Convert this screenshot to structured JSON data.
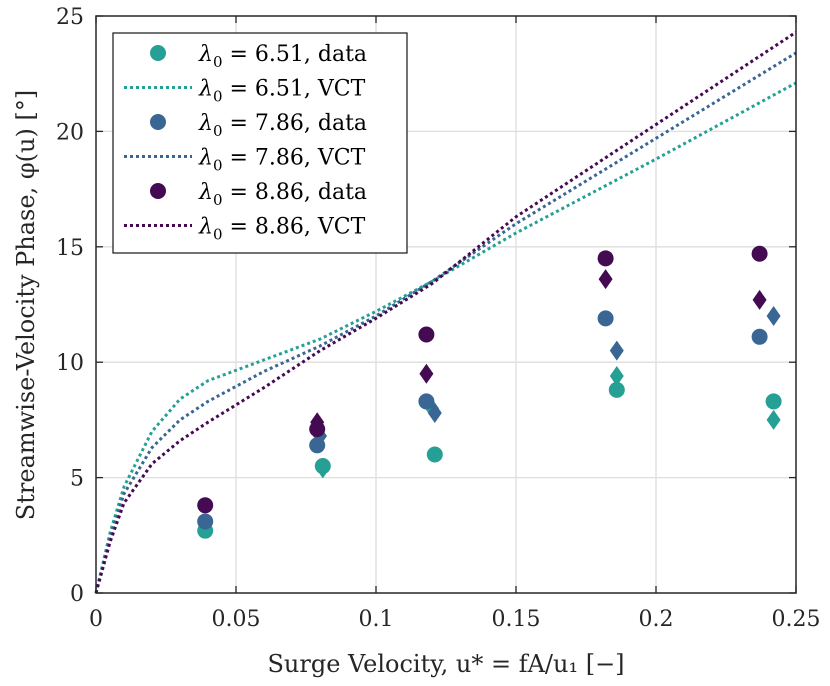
{
  "chart_data": {
    "type": "scatter",
    "xlabel": "Surge Velocity, u* = fA/u₁ [−]",
    "ylabel": "Streamwise-Velocity Phase, φ(u) [°]",
    "xlim": [
      0,
      0.25
    ],
    "ylim": [
      0,
      25
    ],
    "xticks": [
      "0",
      "0.05",
      "0.1",
      "0.15",
      "0.2",
      "0.25"
    ],
    "xtick_values": [
      0,
      0.05,
      0.1,
      0.15,
      0.2,
      0.25
    ],
    "yticks": [
      "0",
      "5",
      "10",
      "15",
      "20",
      "25"
    ],
    "ytick_values": [
      0,
      5,
      10,
      15,
      20,
      25
    ],
    "grid": true,
    "legend_position": "top-left",
    "series": [
      {
        "name": "λ₀ = 6.51, data",
        "color": "#26a094",
        "circles": [
          [
            0.039,
            2.7
          ],
          [
            0.081,
            5.5
          ],
          [
            0.121,
            6.0
          ],
          [
            0.186,
            8.8
          ],
          [
            0.242,
            8.3
          ]
        ],
        "diamonds": [
          [
            0.081,
            5.4
          ],
          [
            0.12,
            8.0
          ],
          [
            0.186,
            9.4
          ],
          [
            0.242,
            7.5
          ]
        ]
      },
      {
        "name": "λ₀ = 6.51, VCT",
        "color": "#26a094",
        "style": "dotted",
        "x": [
          0,
          0.005,
          0.01,
          0.02,
          0.03,
          0.04,
          0.06,
          0.08,
          0.1,
          0.12,
          0.15,
          0.2,
          0.25
        ],
        "y": [
          0,
          2.6,
          4.6,
          7.0,
          8.4,
          9.2,
          10.1,
          11.0,
          12.2,
          13.5,
          15.6,
          18.8,
          22.1
        ]
      },
      {
        "name": "λ₀ = 7.86, data",
        "color": "#3a6694",
        "circles": [
          [
            0.039,
            3.1
          ],
          [
            0.079,
            6.4
          ],
          [
            0.118,
            8.3
          ],
          [
            0.182,
            11.9
          ],
          [
            0.237,
            11.1
          ]
        ],
        "diamonds": [
          [
            0.08,
            6.8
          ],
          [
            0.121,
            7.8
          ],
          [
            0.186,
            10.5
          ],
          [
            0.242,
            12.0
          ]
        ]
      },
      {
        "name": "λ₀ = 7.86, VCT",
        "color": "#3a6694",
        "style": "dotted",
        "x": [
          0,
          0.005,
          0.01,
          0.02,
          0.03,
          0.04,
          0.06,
          0.08,
          0.1,
          0.12,
          0.15,
          0.2,
          0.25
        ],
        "y": [
          0,
          2.4,
          4.3,
          6.3,
          7.5,
          8.3,
          9.6,
          10.7,
          12.0,
          13.5,
          16.0,
          19.7,
          23.4
        ]
      },
      {
        "name": "λ₀ = 8.86, data",
        "color": "#440a52",
        "circles": [
          [
            0.039,
            3.8
          ],
          [
            0.079,
            7.1
          ],
          [
            0.118,
            11.2
          ],
          [
            0.182,
            14.5
          ],
          [
            0.237,
            14.7
          ]
        ],
        "diamonds": [
          [
            0.079,
            7.4
          ],
          [
            0.118,
            9.5
          ],
          [
            0.182,
            13.6
          ],
          [
            0.237,
            12.7
          ]
        ]
      },
      {
        "name": "λ₀ = 8.86, VCT",
        "color": "#440a52",
        "style": "dotted",
        "x": [
          0,
          0.005,
          0.01,
          0.02,
          0.03,
          0.04,
          0.06,
          0.08,
          0.1,
          0.12,
          0.15,
          0.2,
          0.25
        ],
        "y": [
          0,
          2.2,
          3.9,
          5.6,
          6.6,
          7.4,
          8.9,
          10.5,
          11.9,
          13.4,
          16.3,
          20.3,
          24.3
        ]
      }
    ],
    "legend": [
      {
        "base": "λ",
        "sub": "0",
        "rest": " = 6.51, data",
        "marker": "circle",
        "color": "#26a094"
      },
      {
        "base": "λ",
        "sub": "0",
        "rest": " = 6.51, VCT",
        "marker": "line",
        "color": "#26a094"
      },
      {
        "base": "λ",
        "sub": "0",
        "rest": " = 7.86, data",
        "marker": "circle",
        "color": "#3a6694"
      },
      {
        "base": "λ",
        "sub": "0",
        "rest": " = 7.86, VCT",
        "marker": "line",
        "color": "#3a6694"
      },
      {
        "base": "λ",
        "sub": "0",
        "rest": " = 8.86, data",
        "marker": "circle",
        "color": "#440a52"
      },
      {
        "base": "λ",
        "sub": "0",
        "rest": " = 8.86, VCT",
        "marker": "line",
        "color": "#440a52"
      }
    ]
  }
}
